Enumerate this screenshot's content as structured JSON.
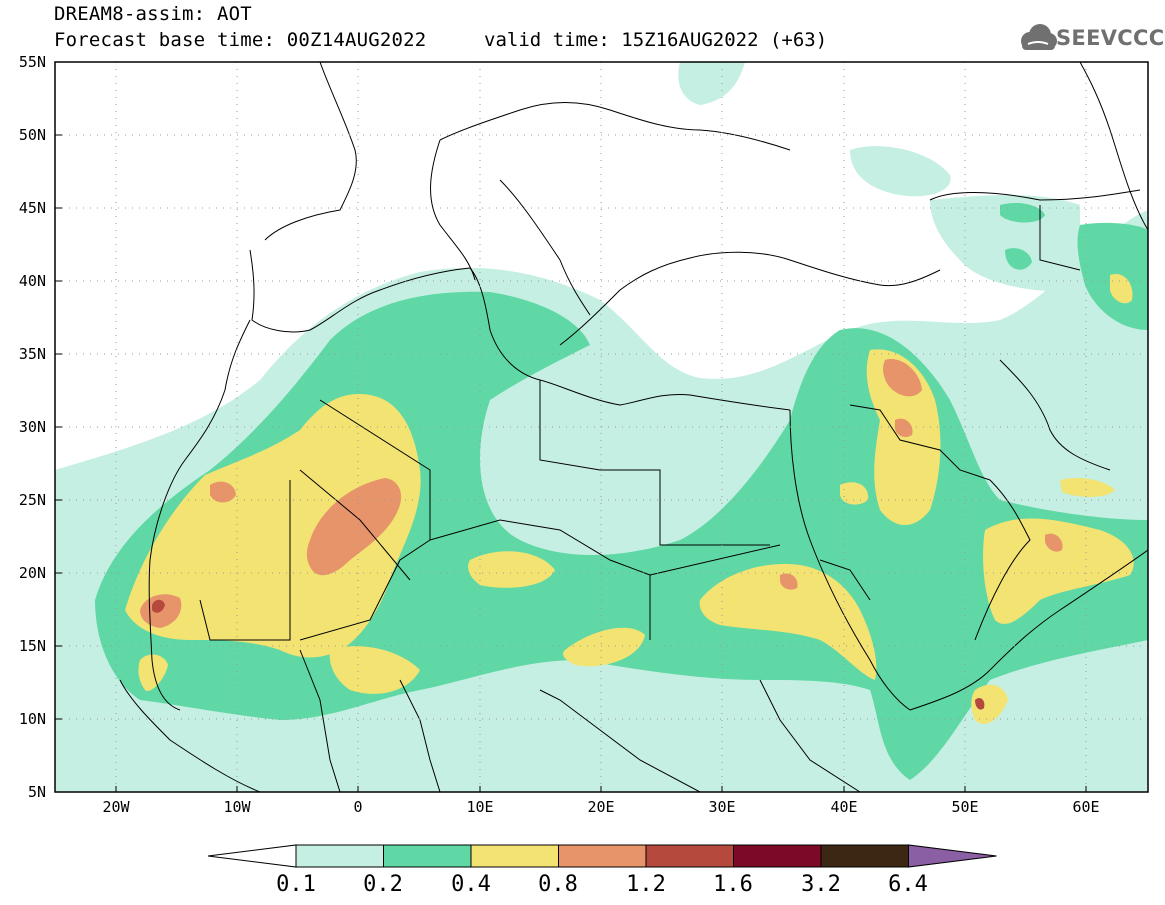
{
  "header": {
    "title": "DREAM8-assim: AOT",
    "base_time": "Forecast base time: 00Z14AUG2022",
    "valid_time": "valid time: 15Z16AUG2022 (+63)",
    "logo_text": "SEEVCCC"
  },
  "map": {
    "lat_labels": [
      "55N",
      "50N",
      "45N",
      "40N",
      "35N",
      "30N",
      "25N",
      "20N",
      "15N",
      "10N",
      "5N"
    ],
    "lon_labels": [
      "20W",
      "10W",
      "0",
      "10E",
      "20E",
      "30E",
      "40E",
      "50E",
      "60E"
    ],
    "extent": {
      "lon_min": -25,
      "lon_max": 65,
      "lat_min": 5,
      "lat_max": 55
    }
  },
  "legend": {
    "thresholds": [
      "0.1",
      "0.2",
      "0.4",
      "0.8",
      "1.2",
      "1.6",
      "3.2",
      "6.4"
    ],
    "colors": [
      "#ffffff",
      "#c6efe3",
      "#5fd8a5",
      "#f2e373",
      "#e7946a",
      "#b5493e",
      "#7c0a27",
      "#3b2713",
      "#8a5fa3"
    ]
  }
}
